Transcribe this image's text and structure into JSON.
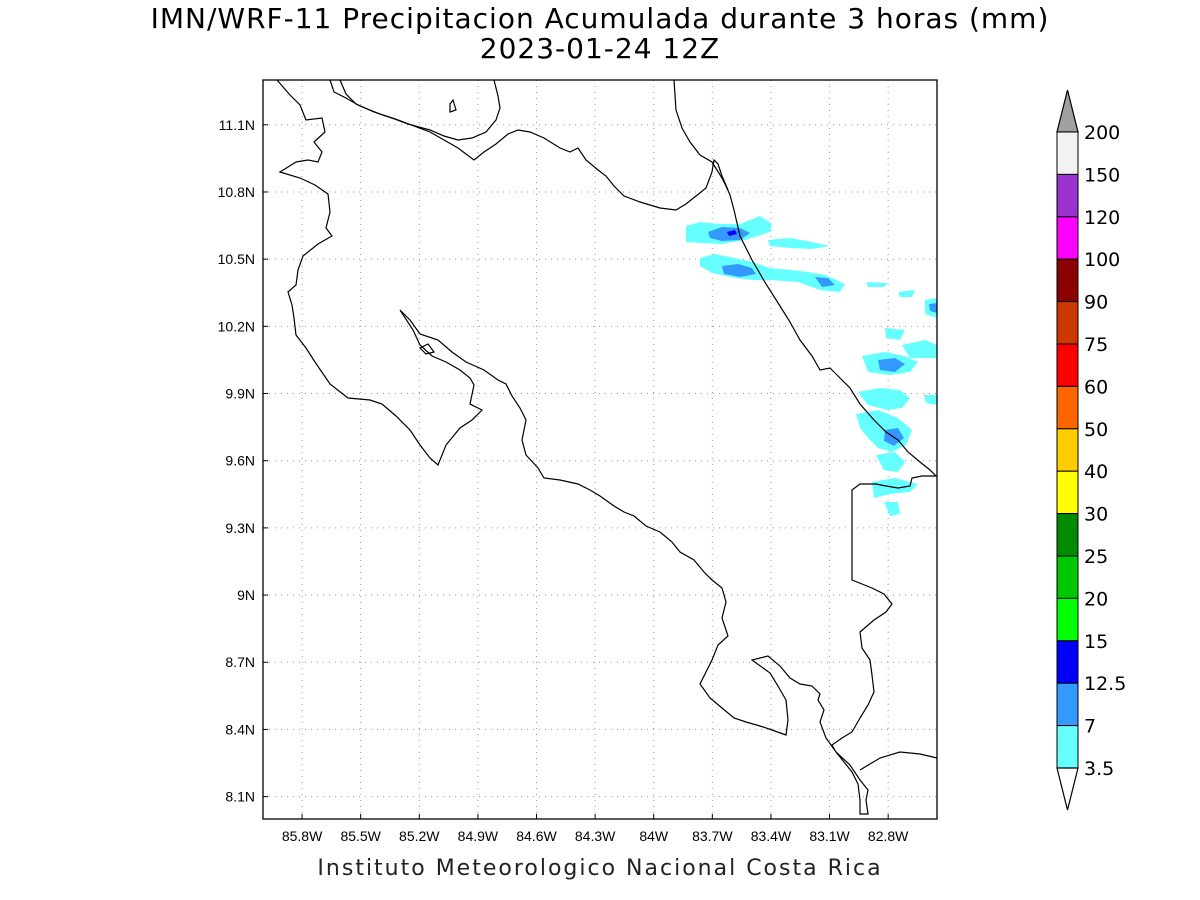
{
  "title": {
    "line1": "IMN/WRF-11 Precipitacion Acumulada durante 3 horas (mm)",
    "line2": "2023-01-24 12Z"
  },
  "footer": "Instituto Meteorologico Nacional Costa Rica",
  "map": {
    "projection": "lat-lon",
    "lon_range": [
      -86.0,
      -82.55
    ],
    "lat_range": [
      8.0,
      11.3
    ],
    "grid": "dotted",
    "lon_ticks": [
      {
        "label": "85.8W",
        "lon": -85.8
      },
      {
        "label": "85.5W",
        "lon": -85.5
      },
      {
        "label": "85.2W",
        "lon": -85.2
      },
      {
        "label": "84.9W",
        "lon": -84.9
      },
      {
        "label": "84.6W",
        "lon": -84.6
      },
      {
        "label": "84.3W",
        "lon": -84.3
      },
      {
        "label": "84W",
        "lon": -84.0
      },
      {
        "label": "83.7W",
        "lon": -83.7
      },
      {
        "label": "83.4W",
        "lon": -83.4
      },
      {
        "label": "83.1W",
        "lon": -83.1
      },
      {
        "label": "82.8W",
        "lon": -82.8
      }
    ],
    "lat_ticks": [
      {
        "label": "11.1N",
        "lat": 11.1
      },
      {
        "label": "10.8N",
        "lat": 10.8
      },
      {
        "label": "10.5N",
        "lat": 10.5
      },
      {
        "label": "10.2N",
        "lat": 10.2
      },
      {
        "label": "9.9N",
        "lat": 9.9
      },
      {
        "label": "9.6N",
        "lat": 9.6
      },
      {
        "label": "9.3N",
        "lat": 9.3
      },
      {
        "label": "9N",
        "lat": 9.0
      },
      {
        "label": "8.7N",
        "lat": 8.7
      },
      {
        "label": "8.4N",
        "lat": 8.4
      },
      {
        "label": "8.1N",
        "lat": 8.1
      }
    ],
    "precip_features": [
      {
        "name": "band-north-1",
        "lon": -83.52,
        "lat": 10.63,
        "level": "3.5"
      },
      {
        "name": "band-north-1-core",
        "lon": -83.56,
        "lat": 10.62,
        "level": "7"
      },
      {
        "name": "band-north-1-max",
        "lon": -83.52,
        "lat": 10.63,
        "level": "12.5"
      },
      {
        "name": "band-north-2",
        "lon": -83.38,
        "lat": 10.43,
        "level": "3.5"
      },
      {
        "name": "band-north-2-core",
        "lon": -83.47,
        "lat": 10.44,
        "level": "7"
      },
      {
        "name": "band-east-1",
        "lon": -82.72,
        "lat": 10.03,
        "level": "3.5"
      },
      {
        "name": "band-east-1-core",
        "lon": -82.75,
        "lat": 10.03,
        "level": "7"
      },
      {
        "name": "band-east-2",
        "lon": -82.78,
        "lat": 9.72,
        "level": "3.5"
      },
      {
        "name": "band-east-2-core",
        "lon": -82.73,
        "lat": 9.68,
        "level": "7"
      }
    ]
  },
  "colorbar": {
    "levels": [
      {
        "label": "200",
        "color": "#a0a0a0"
      },
      {
        "label": "150",
        "color": "#f2f2f2"
      },
      {
        "label": "120",
        "color": "#9a32cd"
      },
      {
        "label": "100",
        "color": "#ff00ff"
      },
      {
        "label": "90",
        "color": "#8b0000"
      },
      {
        "label": "75",
        "color": "#cd3700"
      },
      {
        "label": "60",
        "color": "#ff0000"
      },
      {
        "label": "50",
        "color": "#ff6600"
      },
      {
        "label": "40",
        "color": "#ffcc00"
      },
      {
        "label": "30",
        "color": "#ffff00"
      },
      {
        "label": "25",
        "color": "#008b00"
      },
      {
        "label": "20",
        "color": "#00c800"
      },
      {
        "label": "15",
        "color": "#00ff00"
      },
      {
        "label": "12.5",
        "color": "#0000ff"
      },
      {
        "label": "7",
        "color": "#3399ff"
      },
      {
        "label": "3.5",
        "color": "#66ffff"
      }
    ],
    "bottom_color": "#ffffff"
  }
}
